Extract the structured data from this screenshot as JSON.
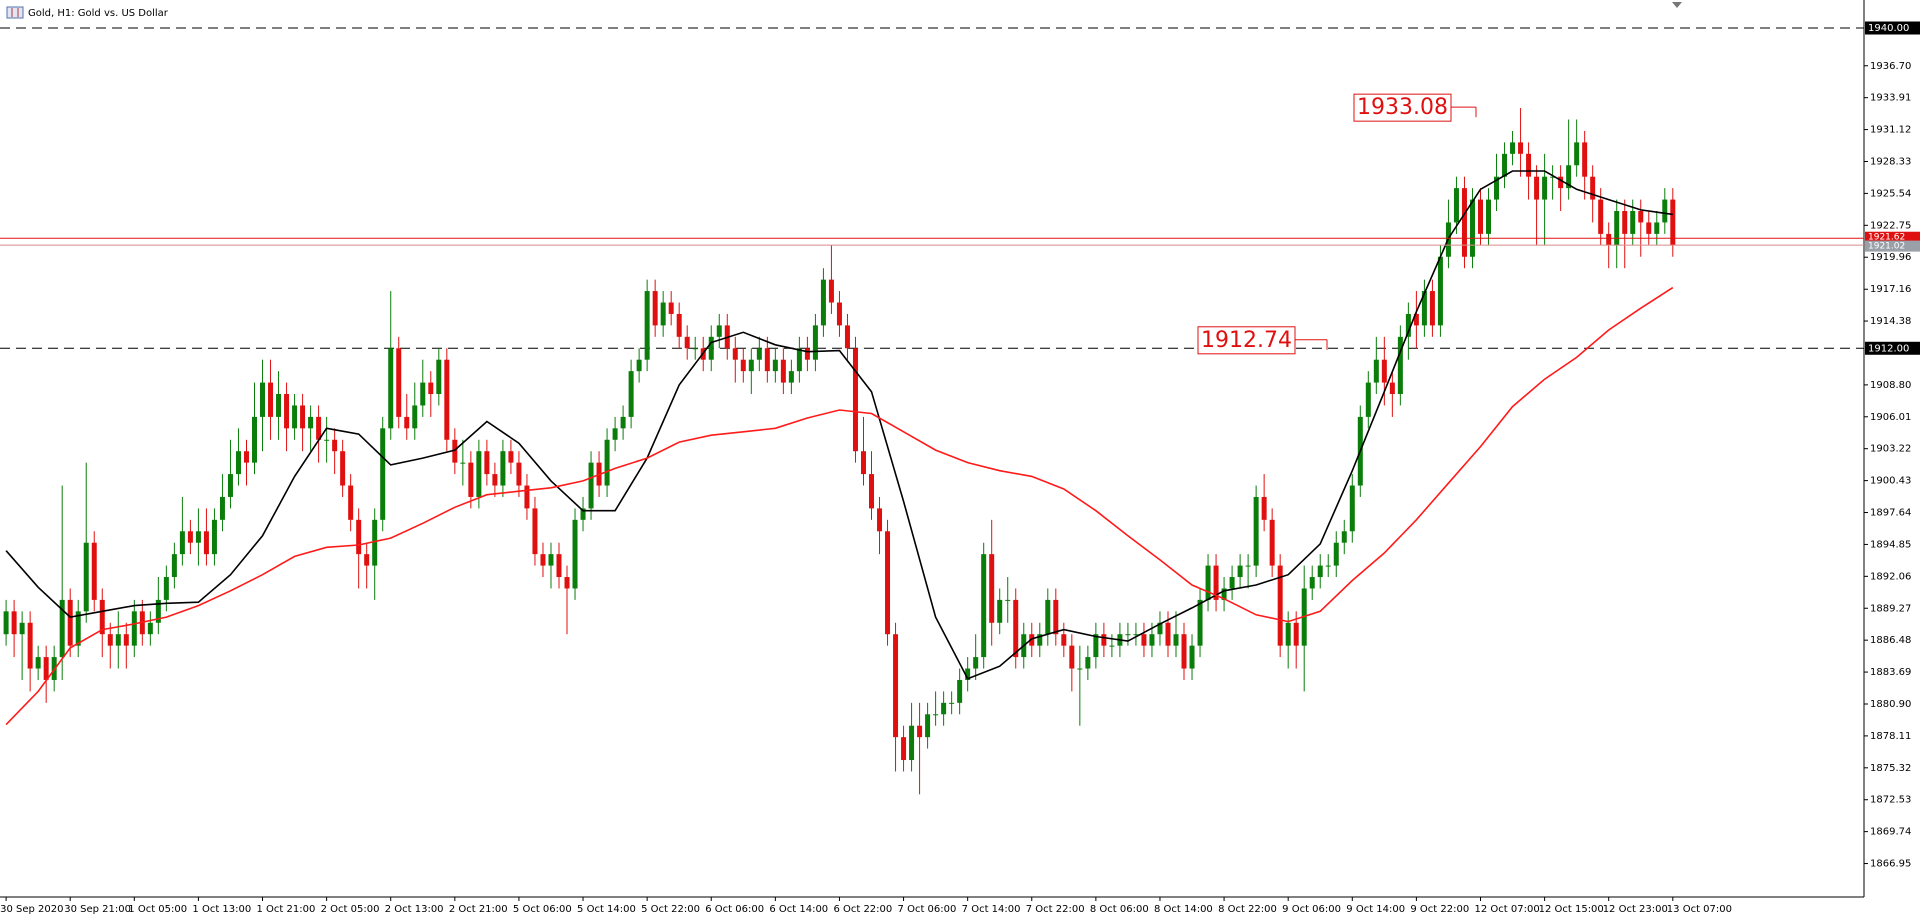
{
  "chart_data": {
    "type": "candlestick",
    "title": "Gold, H1:  Gold vs. US Dollar",
    "up_color": "#0a7d0a",
    "down_color": "#e01010",
    "open": [
      1887,
      1889,
      1887,
      1888,
      1884,
      1885,
      1883,
      1885,
      1890,
      1886,
      1889,
      1895,
      1890,
      1887,
      1886,
      1887,
      1886,
      1889,
      1887,
      1888,
      1890,
      1892,
      1894,
      1896,
      1895,
      1896,
      1894,
      1897,
      1899,
      1901,
      1903,
      1902,
      1906,
      1909,
      1906,
      1908,
      1905,
      1907,
      1905,
      1906,
      1904,
      1904,
      1903,
      1900,
      1897,
      1894,
      1893,
      1897,
      1905,
      1912,
      1906,
      1905,
      1907,
      1909,
      1908,
      1911,
      1904,
      1902,
      1902,
      1899,
      1903,
      1901,
      1900,
      1903,
      1902,
      1900,
      1898,
      1894,
      1893,
      1894,
      1892,
      1891,
      1897,
      1898,
      1902,
      1900,
      1904,
      1905,
      1906,
      1910,
      1911,
      1917,
      1914,
      1916,
      1915,
      1913,
      1912,
      1912,
      1911,
      1913,
      1914,
      1912,
      1911,
      1910,
      1911,
      1912,
      1910,
      1911,
      1909,
      1910,
      1912,
      1911,
      1914,
      1918,
      1916,
      1914,
      1912,
      1903,
      1901,
      1898,
      1896,
      1887,
      1878,
      1876,
      1879,
      1878,
      1880,
      1880,
      1881,
      1881,
      1883,
      1884,
      1885,
      1894,
      1888,
      1890,
      1890,
      1885,
      1887,
      1886,
      1887,
      1890,
      1887,
      1886,
      1884,
      1884,
      1885,
      1887,
      1886,
      1886,
      1887,
      1887,
      1887,
      1886,
      1887,
      1888,
      1886,
      1887,
      1884,
      1886,
      1890,
      1893,
      1890,
      1891,
      1892,
      1893,
      1893,
      1899,
      1897,
      1893,
      1886,
      1888,
      1886,
      1891,
      1892,
      1893,
      1893,
      1895,
      1896,
      1900,
      1906,
      1909,
      1911,
      1909,
      1908,
      1913,
      1915,
      1914,
      1917,
      1914,
      1920,
      1923,
      1926,
      1920,
      1925,
      1922,
      1925,
      1927,
      1929,
      1930,
      1929,
      1927,
      1925,
      1927,
      1927,
      1926,
      1928,
      1930,
      1927,
      1925,
      1922,
      1921,
      1924,
      1922,
      1924,
      1923,
      1922,
      1923,
      1925
    ],
    "high": [
      1890,
      1890,
      1889,
      1889,
      1886,
      1886,
      1886,
      1900,
      1891,
      1890,
      1902,
      1896,
      1891,
      1888,
      1889,
      1888,
      1890,
      1890,
      1889,
      1892,
      1893,
      1895,
      1899,
      1897,
      1898,
      1898,
      1898,
      1901,
      1904,
      1905,
      1904,
      1909,
      1911,
      1911,
      1910,
      1909,
      1908,
      1908,
      1907,
      1907,
      1906,
      1905,
      1904,
      1901,
      1898,
      1895,
      1898,
      1906,
      1917,
      1913,
      1908,
      1909,
      1911,
      1910,
      1912,
      1912,
      1905,
      1904,
      1903,
      1904,
      1904,
      1902,
      1904,
      1904,
      1903,
      1901,
      1899,
      1895,
      1895,
      1895,
      1893,
      1898,
      1899,
      1903,
      1903,
      1905,
      1906,
      1907,
      1911,
      1912,
      1918,
      1918,
      1917,
      1917,
      1916,
      1914,
      1913,
      1913,
      1914,
      1915,
      1915,
      1913,
      1912,
      1912,
      1913,
      1913,
      1912,
      1912,
      1911,
      1913,
      1913,
      1915,
      1919,
      1921,
      1917,
      1915,
      1913,
      1906,
      1903,
      1899,
      1897,
      1888,
      1879,
      1881,
      1881,
      1881,
      1882,
      1882,
      1882,
      1884,
      1885,
      1887,
      1895,
      1897,
      1891,
      1892,
      1891,
      1888,
      1888,
      1888,
      1891,
      1891,
      1888,
      1887,
      1886,
      1886,
      1888,
      1888,
      1887,
      1888,
      1888,
      1888,
      1888,
      1888,
      1889,
      1889,
      1889,
      1888,
      1887,
      1891,
      1894,
      1894,
      1892,
      1893,
      1894,
      1894,
      1900,
      1901,
      1898,
      1894,
      1889,
      1889,
      1893,
      1893,
      1894,
      1894,
      1896,
      1897,
      1901,
      1907,
      1910,
      1913,
      1913,
      1910,
      1914,
      1916,
      1917,
      1918,
      1918,
      1921,
      1925,
      1927,
      1927,
      1926,
      1926,
      1926,
      1929,
      1930,
      1931,
      1933,
      1930,
      1928,
      1929,
      1928,
      1928,
      1932,
      1932,
      1931,
      1928,
      1926,
      1923,
      1925,
      1925,
      1925,
      1925,
      1924,
      1924,
      1926,
      1926
    ],
    "low": [
      1886,
      1885,
      1883,
      1882,
      1883,
      1881,
      1882,
      1883,
      1885,
      1885,
      1888,
      1889,
      1885,
      1884,
      1884,
      1884,
      1885,
      1886,
      1886,
      1887,
      1889,
      1891,
      1893,
      1894,
      1893,
      1893,
      1893,
      1896,
      1898,
      1900,
      1900,
      1901,
      1903,
      1904,
      1904,
      1903,
      1904,
      1903,
      1903,
      1902,
      1902,
      1901,
      1899,
      1896,
      1891,
      1891,
      1890,
      1896,
      1904,
      1905,
      1904,
      1904,
      1906,
      1906,
      1907,
      1903,
      1901,
      1900,
      1898,
      1898,
      1900,
      1899,
      1899,
      1901,
      1899,
      1897,
      1893,
      1892,
      1891,
      1891,
      1887,
      1890,
      1896,
      1897,
      1899,
      1899,
      1903,
      1904,
      1905,
      1909,
      1910,
      1913,
      1913,
      1914,
      1912,
      1911,
      1911,
      1910,
      1910,
      1912,
      1911,
      1909,
      1909,
      1908,
      1910,
      1909,
      1909,
      1908,
      1908,
      1909,
      1910,
      1910,
      1913,
      1915,
      1913,
      1911,
      1902,
      1900,
      1897,
      1894,
      1886,
      1875,
      1875,
      1875,
      1873,
      1877,
      1879,
      1879,
      1880,
      1880,
      1882,
      1883,
      1884,
      1886,
      1887,
      1888,
      1884,
      1884,
      1885,
      1885,
      1886,
      1886,
      1885,
      1882,
      1879,
      1883,
      1884,
      1885,
      1885,
      1885,
      1886,
      1886,
      1885,
      1885,
      1886,
      1885,
      1885,
      1883,
      1883,
      1885,
      1889,
      1889,
      1889,
      1890,
      1891,
      1891,
      1892,
      1896,
      1892,
      1885,
      1884,
      1884,
      1882,
      1890,
      1891,
      1892,
      1892,
      1894,
      1895,
      1899,
      1905,
      1908,
      1907,
      1906,
      1907,
      1911,
      1912,
      1913,
      1913,
      1913,
      1919,
      1922,
      1919,
      1919,
      1921,
      1921,
      1924,
      1926,
      1928,
      1927,
      1925,
      1921,
      1921,
      1925,
      1924,
      1925,
      1927,
      1925,
      1923,
      1921,
      1919,
      1919,
      1919,
      1921,
      1920,
      1921,
      1921,
      1922,
      1920
    ],
    "close": [
      1889,
      1887,
      1888,
      1884,
      1885,
      1883,
      1885,
      1890,
      1886,
      1889,
      1895,
      1890,
      1887,
      1886,
      1887,
      1886,
      1889,
      1887,
      1888,
      1890,
      1892,
      1894,
      1896,
      1895,
      1896,
      1894,
      1897,
      1899,
      1901,
      1903,
      1902,
      1906,
      1909,
      1906,
      1908,
      1905,
      1907,
      1905,
      1906,
      1904,
      1904,
      1903,
      1900,
      1897,
      1894,
      1893,
      1897,
      1905,
      1912,
      1906,
      1905,
      1907,
      1909,
      1908,
      1911,
      1904,
      1902,
      1902,
      1899,
      1903,
      1901,
      1900,
      1903,
      1902,
      1900,
      1898,
      1894,
      1893,
      1894,
      1892,
      1891,
      1897,
      1898,
      1902,
      1900,
      1904,
      1905,
      1906,
      1910,
      1911,
      1917,
      1914,
      1916,
      1915,
      1913,
      1912,
      1912,
      1911,
      1913,
      1914,
      1912,
      1911,
      1910,
      1911,
      1912,
      1910,
      1911,
      1909,
      1910,
      1912,
      1911,
      1914,
      1918,
      1916,
      1914,
      1912,
      1903,
      1901,
      1898,
      1896,
      1887,
      1878,
      1876,
      1879,
      1878,
      1880,
      1880,
      1881,
      1881,
      1883,
      1884,
      1885,
      1894,
      1888,
      1890,
      1890,
      1885,
      1887,
      1886,
      1887,
      1890,
      1887,
      1886,
      1884,
      1884,
      1885,
      1887,
      1886,
      1886,
      1887,
      1887,
      1887,
      1886,
      1887,
      1888,
      1886,
      1887,
      1884,
      1886,
      1890,
      1893,
      1890,
      1891,
      1892,
      1893,
      1893,
      1899,
      1897,
      1893,
      1886,
      1888,
      1886,
      1891,
      1892,
      1893,
      1893,
      1895,
      1896,
      1900,
      1906,
      1909,
      1911,
      1909,
      1908,
      1913,
      1915,
      1914,
      1917,
      1914,
      1920,
      1923,
      1926,
      1920,
      1925,
      1922,
      1925,
      1927,
      1929,
      1930,
      1929,
      1927,
      1925,
      1927,
      1927,
      1926,
      1928,
      1930,
      1927,
      1925,
      1922,
      1921,
      1924,
      1922,
      1924,
      1923,
      1922,
      1923,
      1925,
      1921.02
    ],
    "xlabels": [
      "30 Sep 2020",
      "30 Sep 21:00",
      "1 Oct 05:00",
      "1 Oct 13:00",
      "1 Oct 21:00",
      "2 Oct 05:00",
      "2 Oct 13:00",
      "2 Oct 21:00",
      "5 Oct 06:00",
      "5 Oct 14:00",
      "5 Oct 22:00",
      "6 Oct 06:00",
      "6 Oct 14:00",
      "6 Oct 22:00",
      "7 Oct 06:00",
      "7 Oct 14:00",
      "7 Oct 22:00",
      "8 Oct 06:00",
      "8 Oct 14:00",
      "8 Oct 22:00",
      "9 Oct 06:00",
      "9 Oct 14:00",
      "9 Oct 22:00",
      "12 Oct 07:00",
      "12 Oct 15:00",
      "12 Oct 23:00",
      "13 Oct 07:00"
    ],
    "ylim": [
      1864.2,
      1940.7
    ],
    "yticks": [
      {
        "value": 1936.7,
        "label": "1936.70"
      },
      1933.91,
      1931.12,
      1928.33,
      1925.54,
      1922.75,
      1919.96,
      1917.16,
      1914.38,
      {
        "value": 1908.8,
        "label": "1908.80"
      },
      1906.01,
      1903.22,
      1900.43,
      1897.64,
      1894.85,
      1892.06,
      1889.27,
      1886.48,
      1883.69,
      {
        "value": 1880.9,
        "label": "1880.90"
      },
      1878.11,
      1875.32,
      1872.53,
      1869.74,
      1866.95
    ],
    "levels": [
      {
        "value": 1940,
        "label": "1940.00"
      },
      {
        "value": 1912,
        "label": "1912.00"
      }
    ],
    "ask": 1921.62,
    "bid": 1921.02,
    "annotations": [
      1933.08,
      1912.74
    ],
    "ma_x": [
      0,
      4,
      8,
      12,
      16,
      20,
      24,
      28,
      32,
      36,
      40,
      44,
      48,
      52,
      56,
      60,
      64,
      68,
      72,
      76,
      80,
      84,
      88,
      92,
      96,
      100,
      104,
      108,
      112,
      116,
      120,
      124,
      128,
      132,
      136,
      140,
      144,
      148,
      152,
      156,
      160,
      164,
      168,
      172,
      176,
      180,
      184,
      188,
      192,
      196,
      200,
      204,
      208
    ],
    "lines": [
      {
        "color": "#000000",
        "values": [
          1894.3,
          1891.1,
          1888.5,
          1889.0,
          1889.5,
          1889.7,
          1889.8,
          1892.2,
          1895.6,
          1900.8,
          1905.0,
          1904.5,
          1901.8,
          1902.4,
          1903.1,
          1905.6,
          1903.7,
          1900.4,
          1897.8,
          1897.8,
          1902.4,
          1908.8,
          1912.5,
          1913.4,
          1912.3,
          1911.7,
          1911.8,
          1908.2,
          1898.6,
          1888.5,
          1883.1,
          1884.2,
          1886.6,
          1887.4,
          1886.8,
          1886.4,
          1887.9,
          1889.3,
          1890.8,
          1891.3,
          1892.2,
          1894.9,
          1901.3,
          1908.2,
          1915.2,
          1921.6,
          1925.9,
          1927.5,
          1927.5,
          1925.9,
          1925.0,
          1924.1,
          1923.7
        ]
      },
      {
        "color": "#ff1a1a",
        "values": [
          1879.1,
          1882.0,
          1885.8,
          1887.4,
          1887.9,
          1888.5,
          1889.5,
          1890.8,
          1892.2,
          1893.8,
          1894.6,
          1894.8,
          1895.4,
          1896.7,
          1898.1,
          1899.2,
          1899.5,
          1899.8,
          1900.4,
          1901.5,
          1902.4,
          1903.8,
          1904.4,
          1904.7,
          1905.0,
          1905.9,
          1906.6,
          1906.3,
          1904.7,
          1903.1,
          1902.0,
          1901.3,
          1900.8,
          1899.7,
          1897.8,
          1895.6,
          1893.5,
          1891.3,
          1890.1,
          1888.7,
          1888.1,
          1889.0,
          1891.7,
          1894.1,
          1897.0,
          1900.2,
          1903.4,
          1906.9,
          1909.3,
          1911.2,
          1913.6,
          1915.5,
          1917.3
        ]
      }
    ]
  }
}
